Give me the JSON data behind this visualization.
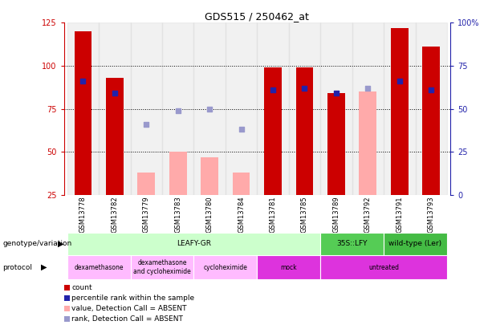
{
  "title": "GDS515 / 250462_at",
  "samples": [
    "GSM13778",
    "GSM13782",
    "GSM13779",
    "GSM13783",
    "GSM13780",
    "GSM13784",
    "GSM13781",
    "GSM13785",
    "GSM13789",
    "GSM13792",
    "GSM13791",
    "GSM13793"
  ],
  "count_values": [
    120,
    93,
    0,
    0,
    0,
    0,
    99,
    99,
    84,
    0,
    122,
    111
  ],
  "count_absent": [
    false,
    false,
    true,
    true,
    true,
    true,
    false,
    false,
    false,
    true,
    false,
    false
  ],
  "absent_count_values": [
    0,
    0,
    38,
    50,
    47,
    38,
    0,
    0,
    0,
    85,
    0,
    0
  ],
  "percentile_values": [
    91,
    84,
    0,
    0,
    0,
    0,
    86,
    87,
    84,
    0,
    91,
    86
  ],
  "percentile_absent": [
    false,
    false,
    true,
    true,
    true,
    true,
    false,
    false,
    false,
    true,
    false,
    false
  ],
  "absent_percentile_values": [
    0,
    0,
    66,
    74,
    75,
    63,
    0,
    0,
    0,
    87,
    0,
    0
  ],
  "ylim_left": [
    25,
    125
  ],
  "ylim_right": [
    0,
    100
  ],
  "yticks_left": [
    25,
    50,
    75,
    100,
    125
  ],
  "yticks_right": [
    0,
    25,
    50,
    75,
    100
  ],
  "ytick_right_labels": [
    "0",
    "25",
    "50",
    "75",
    "100%"
  ],
  "color_count_red": "#cc0000",
  "color_count_absent": "#ffaaaa",
  "color_percentile_blue": "#2222aa",
  "color_percentile_absent": "#9999cc",
  "genotype_groups": [
    {
      "label": "LEAFY-GR",
      "start": 0,
      "end": 8,
      "color": "#ccffcc"
    },
    {
      "label": "35S::LFY",
      "start": 8,
      "end": 10,
      "color": "#55cc55"
    },
    {
      "label": "wild-type (Ler)",
      "start": 10,
      "end": 12,
      "color": "#44bb44"
    }
  ],
  "protocol_groups": [
    {
      "label": "dexamethasone",
      "start": 0,
      "end": 2,
      "color": "#ffbbff"
    },
    {
      "label": "dexamethasone\nand cycloheximide",
      "start": 2,
      "end": 4,
      "color": "#ffbbff"
    },
    {
      "label": "cycloheximide",
      "start": 4,
      "end": 6,
      "color": "#ffbbff"
    },
    {
      "label": "mock",
      "start": 6,
      "end": 8,
      "color": "#dd33dd"
    },
    {
      "label": "untreated",
      "start": 8,
      "end": 12,
      "color": "#dd33dd"
    }
  ],
  "bar_width": 0.55
}
